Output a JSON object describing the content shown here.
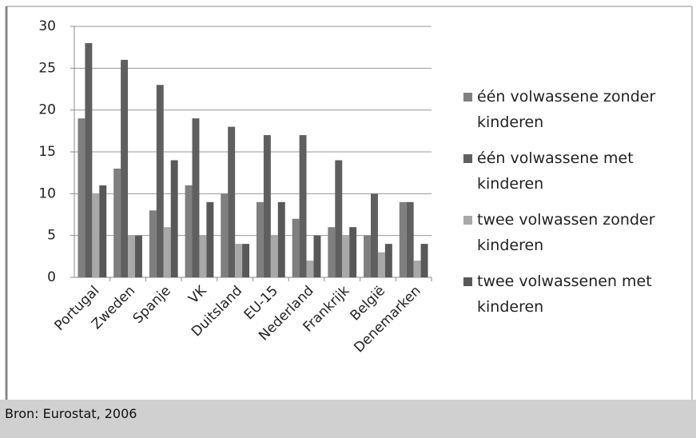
{
  "chart_data": {
    "type": "bar",
    "categories": [
      "Portugal",
      "Zweden",
      "Spanje",
      "VK",
      "Duitsland",
      "EU-15",
      "Nederland",
      "Frankrijk",
      "België",
      "Denemarken"
    ],
    "series": [
      {
        "name": "één volwassene zonder kinderen",
        "color": "#7f7f7f",
        "values": [
          19,
          13,
          8,
          11,
          10,
          9,
          7,
          6,
          5,
          9
        ]
      },
      {
        "name": "één volwassene met kinderen",
        "color": "#5f5f5f",
        "values": [
          28,
          26,
          23,
          19,
          18,
          17,
          17,
          14,
          10,
          9
        ]
      },
      {
        "name": "twee volwassen zonder kinderen",
        "color": "#a8a8a8",
        "values": [
          10,
          5,
          6,
          5,
          4,
          5,
          2,
          5,
          3,
          2
        ]
      },
      {
        "name": "twee volwassenen met kinderen",
        "color": "#585858",
        "values": [
          11,
          5,
          14,
          9,
          4,
          9,
          5,
          6,
          4,
          4
        ]
      }
    ],
    "ylim": [
      0,
      30
    ],
    "yticks": [
      0,
      5,
      10,
      15,
      20,
      25,
      30
    ],
    "grid": true,
    "legend": "right",
    "source": "Bron: Eurostat, 2006"
  }
}
